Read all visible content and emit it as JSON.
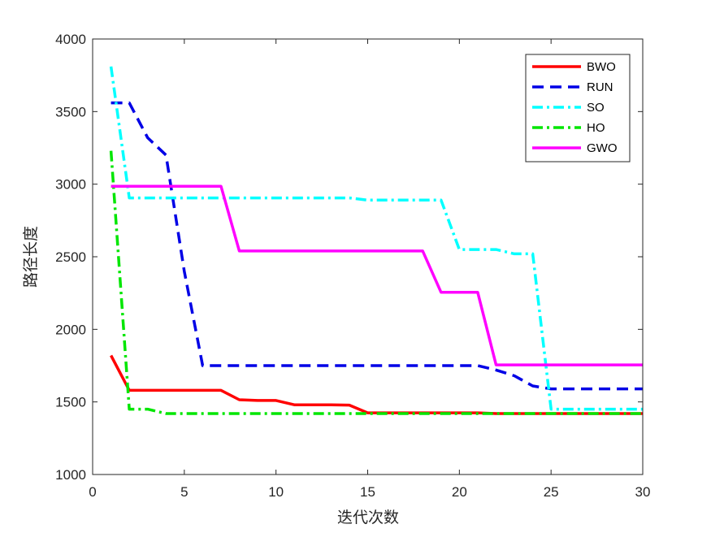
{
  "chart_data": {
    "type": "line",
    "xlabel": "迭代次数",
    "ylabel": "路径长度",
    "xlim": [
      0,
      30
    ],
    "ylim": [
      1000,
      4000
    ],
    "xticks": [
      "0",
      "5",
      "10",
      "15",
      "20",
      "25",
      "30"
    ],
    "yticks": [
      "1000",
      "1500",
      "2000",
      "2500",
      "3000",
      "3500",
      "4000"
    ],
    "grid": false,
    "legend_position": "top-right",
    "series": [
      {
        "name": "BWO",
        "color": "#ff0000",
        "style": "solid",
        "x": [
          1,
          2,
          3,
          4,
          5,
          6,
          7,
          8,
          9,
          10,
          11,
          12,
          13,
          14,
          15,
          16,
          17,
          18,
          19,
          20,
          21,
          22,
          23,
          24,
          25,
          26,
          27,
          28,
          29,
          30
        ],
        "y": [
          1820,
          1580,
          1580,
          1580,
          1580,
          1580,
          1580,
          1515,
          1510,
          1510,
          1480,
          1480,
          1480,
          1478,
          1425,
          1425,
          1425,
          1425,
          1425,
          1425,
          1425,
          1420,
          1420,
          1420,
          1420,
          1420,
          1420,
          1420,
          1420,
          1420
        ]
      },
      {
        "name": "RUN",
        "color": "#0000e6",
        "style": "dashed",
        "x": [
          1,
          2,
          3,
          4,
          5,
          6,
          7,
          8,
          9,
          10,
          11,
          12,
          13,
          14,
          15,
          16,
          17,
          18,
          19,
          20,
          21,
          22,
          23,
          24,
          25,
          26,
          27,
          28,
          29,
          30
        ],
        "y": [
          3560,
          3560,
          3320,
          3200,
          2400,
          1750,
          1750,
          1750,
          1750,
          1750,
          1750,
          1750,
          1750,
          1750,
          1750,
          1750,
          1750,
          1750,
          1750,
          1750,
          1750,
          1720,
          1680,
          1610,
          1590,
          1590,
          1590,
          1590,
          1590,
          1590
        ]
      },
      {
        "name": "SO",
        "color": "#00ffff",
        "style": "dashdot",
        "x": [
          1,
          2,
          3,
          4,
          5,
          6,
          7,
          8,
          9,
          10,
          11,
          12,
          13,
          14,
          15,
          16,
          17,
          18,
          19,
          20,
          21,
          22,
          23,
          24,
          25,
          26,
          27,
          28,
          29,
          30
        ],
        "y": [
          3810,
          2905,
          2905,
          2905,
          2905,
          2905,
          2905,
          2905,
          2905,
          2905,
          2905,
          2905,
          2905,
          2905,
          2890,
          2890,
          2890,
          2890,
          2890,
          2550,
          2550,
          2550,
          2520,
          2520,
          1450,
          1450,
          1450,
          1450,
          1450,
          1450
        ]
      },
      {
        "name": "HO",
        "color": "#00e600",
        "style": "dashdot",
        "x": [
          1,
          2,
          3,
          4,
          5,
          6,
          7,
          8,
          9,
          10,
          11,
          12,
          13,
          14,
          15,
          16,
          17,
          18,
          19,
          20,
          21,
          22,
          23,
          24,
          25,
          26,
          27,
          28,
          29,
          30
        ],
        "y": [
          3230,
          1450,
          1450,
          1420,
          1420,
          1420,
          1420,
          1420,
          1420,
          1420,
          1420,
          1420,
          1420,
          1420,
          1420,
          1420,
          1420,
          1420,
          1420,
          1420,
          1420,
          1420,
          1420,
          1420,
          1420,
          1420,
          1420,
          1420,
          1420,
          1420
        ]
      },
      {
        "name": "GWO",
        "color": "#ff00ff",
        "style": "solid",
        "x": [
          1,
          2,
          3,
          4,
          5,
          6,
          7,
          8,
          9,
          10,
          11,
          12,
          13,
          14,
          15,
          16,
          17,
          18,
          19,
          20,
          21,
          22,
          23,
          24,
          25,
          26,
          27,
          28,
          29,
          30
        ],
        "y": [
          2985,
          2985,
          2985,
          2985,
          2985,
          2985,
          2985,
          2540,
          2540,
          2540,
          2540,
          2540,
          2540,
          2540,
          2540,
          2540,
          2540,
          2540,
          2255,
          2255,
          2255,
          1755,
          1755,
          1755,
          1755,
          1755,
          1755,
          1755,
          1755,
          1755
        ]
      }
    ]
  }
}
